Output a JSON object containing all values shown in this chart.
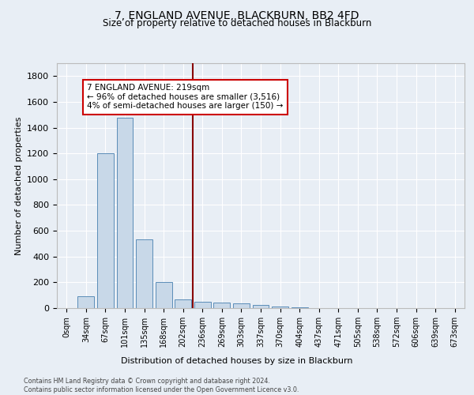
{
  "title1": "7, ENGLAND AVENUE, BLACKBURN, BB2 4FD",
  "title2": "Size of property relative to detached houses in Blackburn",
  "xlabel": "Distribution of detached houses by size in Blackburn",
  "ylabel": "Number of detached properties",
  "footnote": "Contains HM Land Registry data © Crown copyright and database right 2024.\nContains public sector information licensed under the Open Government Licence v3.0.",
  "bar_labels": [
    "0sqm",
    "34sqm",
    "67sqm",
    "101sqm",
    "135sqm",
    "168sqm",
    "202sqm",
    "236sqm",
    "269sqm",
    "303sqm",
    "337sqm",
    "370sqm",
    "404sqm",
    "437sqm",
    "471sqm",
    "505sqm",
    "538sqm",
    "572sqm",
    "606sqm",
    "639sqm",
    "673sqm"
  ],
  "bar_values": [
    0,
    95,
    1200,
    1480,
    535,
    205,
    70,
    50,
    45,
    35,
    25,
    15,
    5,
    2,
    0,
    0,
    0,
    0,
    0,
    0,
    0
  ],
  "bar_color": "#c8d8e8",
  "bar_edge_color": "#5b8db8",
  "bg_color": "#e8eef5",
  "grid_color": "#ffffff",
  "vline_color": "#880000",
  "annotation_text": "7 ENGLAND AVENUE: 219sqm\n← 96% of detached houses are smaller (3,516)\n4% of semi-detached houses are larger (150) →",
  "ylim": [
    0,
    1900
  ],
  "yticks": [
    0,
    200,
    400,
    600,
    800,
    1000,
    1200,
    1400,
    1600,
    1800
  ]
}
